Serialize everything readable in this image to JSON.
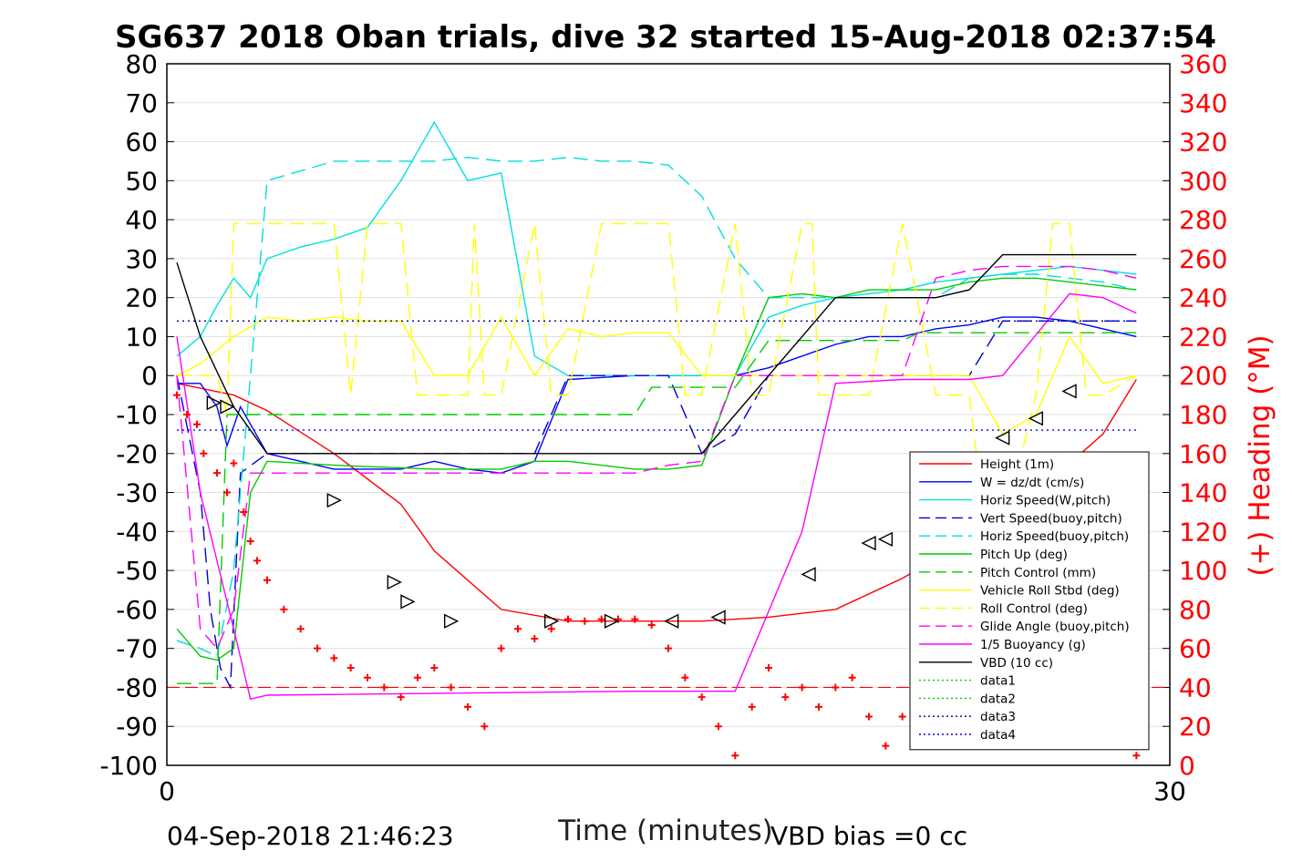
{
  "chart_data": {
    "type": "line",
    "title": "SG637 2018 Oban trials, dive 32 started 15-Aug-2018 02:37:54",
    "xlabel": "Time (minutes)",
    "ylabel": "",
    "y2label": "(+) Heading (°M)",
    "xlim": [
      0,
      30
    ],
    "ylim": [
      -100,
      80
    ],
    "y2lim": [
      0,
      360
    ],
    "xticks": [
      "0",
      "30"
    ],
    "yticks": [
      "80",
      "70",
      "60",
      "50",
      "40",
      "30",
      "20",
      "10",
      "0",
      "-10",
      "-20",
      "-30",
      "-40",
      "-50",
      "-60",
      "-70",
      "-80",
      "-90",
      "-100"
    ],
    "y2ticks": [
      "360",
      "340",
      "320",
      "300",
      "280",
      "260",
      "240",
      "220",
      "200",
      "180",
      "160",
      "140",
      "120",
      "100",
      "80",
      "60",
      "40",
      "20",
      "0"
    ],
    "grid": true,
    "legend_position": "bottom-right",
    "footer_left": "04-Sep-2018 21:46:23",
    "footer_right": "VBD bias =0 cc",
    "series": [
      {
        "name": "Height (1m)",
        "color": "#ff0000",
        "style": "solid",
        "x": [
          0.3,
          2,
          3,
          5,
          7,
          8,
          10,
          12,
          14,
          16,
          18,
          20,
          22,
          24,
          26,
          28,
          29
        ],
        "values": [
          -2,
          -5,
          -9,
          -20,
          -33,
          -45,
          -60,
          -63,
          -63,
          -63,
          -62,
          -60,
          -52,
          -42,
          -30,
          -15,
          -1
        ]
      },
      {
        "name": "W = dz/dt (cm/s)",
        "color": "#0000ff",
        "style": "solid",
        "x": [
          0.3,
          1,
          1.5,
          1.8,
          2.2,
          3,
          5,
          7,
          8,
          9,
          10,
          11,
          12,
          14,
          15,
          16,
          17,
          18,
          19,
          20,
          21,
          22,
          23,
          24,
          25,
          26,
          27,
          28,
          29
        ],
        "values": [
          -2,
          -2,
          -8,
          -18,
          -8,
          -20,
          -24,
          -24,
          -22,
          -24,
          -25,
          -22,
          -1,
          0,
          0,
          0,
          0,
          2,
          5,
          8,
          10,
          10,
          12,
          13,
          15,
          15,
          14,
          12,
          10
        ]
      },
      {
        "name": "Horiz Speed(W,pitch)",
        "color": "#00e0e0",
        "style": "solid",
        "x": [
          0.3,
          1,
          1.5,
          2,
          2.5,
          3,
          4,
          5,
          6,
          7,
          8,
          9,
          10,
          11,
          12,
          14,
          15,
          16,
          17,
          18,
          19,
          20,
          21,
          22,
          23,
          24,
          25,
          26,
          27,
          28,
          29
        ],
        "values": [
          5,
          10,
          18,
          25,
          20,
          30,
          33,
          35,
          38,
          50,
          65,
          50,
          52,
          5,
          0,
          0,
          0,
          0,
          0,
          15,
          18,
          20,
          21,
          22,
          24,
          25,
          26,
          27,
          28,
          27,
          26
        ]
      },
      {
        "name": "Vert Speed(buoy,pitch)",
        "color": "#0000cc",
        "style": "dashed",
        "x": [
          0.3,
          1,
          1.3,
          1.6,
          1.9,
          2.2,
          3,
          8,
          11,
          12,
          14,
          15,
          16,
          17,
          18,
          19,
          20,
          21,
          22,
          23,
          24,
          25,
          26,
          27,
          28,
          29
        ],
        "values": [
          0,
          -30,
          -60,
          -75,
          -80,
          -25,
          -20,
          -20,
          -20,
          0,
          0,
          0,
          -20,
          -15,
          0,
          0,
          0,
          0,
          0,
          0,
          0,
          14,
          14,
          14,
          14,
          14
        ]
      },
      {
        "name": "Horiz Speed(buoy,pitch)",
        "color": "#00dddd",
        "style": "dashed",
        "x": [
          0.3,
          1,
          1.5,
          2,
          2.5,
          3,
          5,
          8,
          9,
          10,
          11,
          12,
          13,
          14,
          15,
          16,
          17,
          18,
          19,
          20,
          21,
          22,
          23,
          24,
          25,
          26,
          27,
          28,
          29
        ],
        "values": [
          -68,
          -70,
          -72,
          -50,
          0,
          50,
          55,
          55,
          56,
          55,
          55,
          56,
          55,
          55,
          54,
          46,
          30,
          20,
          20,
          20,
          20,
          20,
          20,
          25,
          26,
          26,
          25,
          24,
          22
        ]
      },
      {
        "name": "Pitch Up (deg)",
        "color": "#00cc00",
        "style": "solid",
        "x": [
          0.3,
          1,
          1.5,
          2,
          2.5,
          3,
          5,
          8,
          10,
          11,
          12,
          14,
          15,
          16,
          17,
          18,
          19,
          20,
          21,
          22,
          23,
          24,
          25,
          26,
          27,
          28,
          29
        ],
        "values": [
          -65,
          -72,
          -73,
          -70,
          -30,
          -22,
          -23,
          -24,
          -24,
          -22,
          -22,
          -24,
          -24,
          -23,
          0,
          20,
          21,
          20,
          22,
          22,
          22,
          24,
          25,
          25,
          24,
          23,
          22
        ]
      },
      {
        "name": "Pitch Control (mm)",
        "color": "#00cc00",
        "style": "dashed",
        "x": [
          0.3,
          1.5,
          1.8,
          2,
          14,
          14.5,
          17,
          18,
          22,
          22.5,
          29
        ],
        "values": [
          -79,
          -79,
          -10,
          -10,
          -10,
          -3,
          -3,
          9,
          9,
          11,
          11
        ]
      },
      {
        "name": "Vehicle Roll Stbd (deg)",
        "color": "#ffff00",
        "style": "solid",
        "x": [
          0.3,
          1,
          2,
          3,
          4,
          5,
          6,
          7,
          8,
          9,
          10,
          11,
          12,
          13,
          14,
          15,
          16,
          17,
          18,
          19,
          20,
          21,
          22,
          23,
          24,
          25,
          26,
          27,
          28,
          29
        ],
        "values": [
          0,
          3,
          10,
          15,
          14,
          15,
          14,
          14,
          0,
          0,
          15,
          0,
          12,
          10,
          11,
          11,
          0,
          0,
          0,
          0,
          0,
          0,
          0,
          0,
          0,
          -15,
          -10,
          10,
          -2,
          0
        ]
      },
      {
        "name": "Roll Control (deg)",
        "color": "#ffff00",
        "style": "dashed",
        "x": [
          0.3,
          1.5,
          1.8,
          2,
          5,
          5.5,
          6,
          7,
          7.5,
          8,
          9,
          9.2,
          9.5,
          10,
          11,
          11.5,
          12,
          13,
          13.5,
          14,
          15,
          15.5,
          16,
          17,
          17.5,
          18,
          19,
          19.3,
          19.5,
          21,
          22,
          23,
          24,
          24.5,
          25,
          26,
          26.5,
          27,
          27.5,
          28,
          29
        ],
        "values": [
          0,
          0,
          -10,
          39,
          39,
          -5,
          39,
          39,
          -5,
          -5,
          -5,
          39,
          -5,
          -5,
          39,
          -5,
          -5,
          39,
          39,
          39,
          39,
          -5,
          -5,
          39,
          -5,
          -5,
          39,
          39,
          -5,
          -5,
          39,
          -5,
          -5,
          -40,
          -40,
          -5,
          39,
          39,
          -5,
          -5,
          0
        ]
      },
      {
        "name": "Glide Angle (buoy,pitch)",
        "color": "#ff00ff",
        "style": "dashed",
        "x": [
          0.3,
          1,
          1.5,
          2,
          2.5,
          3,
          8,
          9,
          10,
          11,
          12,
          14,
          15,
          16,
          17,
          18,
          19,
          20,
          21,
          22,
          23,
          24,
          25,
          26,
          27,
          28,
          29
        ],
        "values": [
          0,
          -65,
          -70,
          -60,
          -25,
          -25,
          -25,
          -25,
          -25,
          -25,
          -25,
          -25,
          -23,
          -22,
          0,
          0,
          0,
          0,
          0,
          0,
          25,
          27,
          28,
          28,
          28,
          27,
          25
        ]
      },
      {
        "name": "1/5 Buoyancy (g)",
        "color": "#ff00ff",
        "style": "solid",
        "x": [
          0.3,
          1,
          2,
          2.5,
          3,
          14,
          17,
          19,
          20,
          22,
          24,
          25,
          27,
          28,
          29
        ],
        "values": [
          10,
          -30,
          -65,
          -83,
          -82,
          -81,
          -81,
          -40,
          -2,
          -1,
          -1,
          0,
          21,
          20,
          16
        ]
      },
      {
        "name": "VBD (10 cc)",
        "color": "#000000",
        "style": "solid",
        "x": [
          0.3,
          1,
          2,
          3,
          14,
          16,
          17,
          18,
          19,
          20,
          23,
          24,
          25,
          26,
          27,
          28,
          29
        ],
        "values": [
          29,
          10,
          -8,
          -20,
          -20,
          -20,
          -10,
          0,
          10,
          20,
          20,
          22,
          31,
          31,
          31,
          31,
          31
        ]
      },
      {
        "name": "data1",
        "color": "#00cc00",
        "style": "dotted",
        "x": [],
        "values": []
      },
      {
        "name": "data2",
        "color": "#00cc00",
        "style": "dotted",
        "x": [],
        "values": []
      },
      {
        "name": "data3",
        "color": "#000080",
        "style": "dotted",
        "x": [
          0.3,
          29
        ],
        "values": [
          14,
          14
        ]
      },
      {
        "name": "data4",
        "color": "#0000ff",
        "style": "dotted",
        "x": [
          0.3,
          29
        ],
        "values": [
          -14,
          -14
        ]
      }
    ],
    "reference_line": {
      "y": -80,
      "color": "#ff0000",
      "style": "dashed"
    },
    "heading_points": {
      "color": "#ff0000",
      "axis": "right",
      "x": [
        0.3,
        0.6,
        0.9,
        1.1,
        1.5,
        1.8,
        2.0,
        2.3,
        2.5,
        2.7,
        3.0,
        3.5,
        4.0,
        4.5,
        5.0,
        5.5,
        6.0,
        6.5,
        7.0,
        7.5,
        8.0,
        8.5,
        9.0,
        9.5,
        10.0,
        10.5,
        11.0,
        11.5,
        12.0,
        12.5,
        13.0,
        13.5,
        14.0,
        14.5,
        15.0,
        15.5,
        16.0,
        16.5,
        17.0,
        17.5,
        18.0,
        18.5,
        19.0,
        19.5,
        20.0,
        20.5,
        21.0,
        21.5,
        22.0,
        22.5,
        23.0,
        23.5,
        24.0,
        24.5,
        25.0,
        25.5,
        26.0,
        26.5,
        27.0,
        27.5,
        28.0,
        28.5,
        29.0
      ],
      "values": [
        190,
        180,
        175,
        160,
        150,
        140,
        155,
        130,
        115,
        105,
        95,
        80,
        70,
        60,
        55,
        50,
        45,
        40,
        35,
        45,
        50,
        40,
        30,
        20,
        60,
        70,
        65,
        70,
        75,
        74,
        75,
        75,
        75,
        72,
        60,
        45,
        35,
        20,
        5,
        30,
        50,
        35,
        40,
        30,
        40,
        45,
        25,
        10,
        25,
        38,
        35,
        35,
        37,
        40,
        55,
        40,
        35,
        20,
        30,
        35,
        40,
        15,
        5
      ]
    },
    "height_markers": {
      "color": "#000000",
      "x": [
        1.4,
        1.8,
        5,
        6.8,
        7.2,
        8.5,
        11.5,
        13.3,
        15.1,
        16.5,
        19.2,
        21,
        21.5,
        23,
        24,
        25,
        26,
        27
      ],
      "values": [
        -7,
        -8,
        -32,
        -53,
        -58,
        -63,
        -63,
        -63,
        -63,
        -62,
        -51,
        -43,
        -42,
        -30,
        -25,
        -16,
        -11,
        -4
      ]
    }
  }
}
